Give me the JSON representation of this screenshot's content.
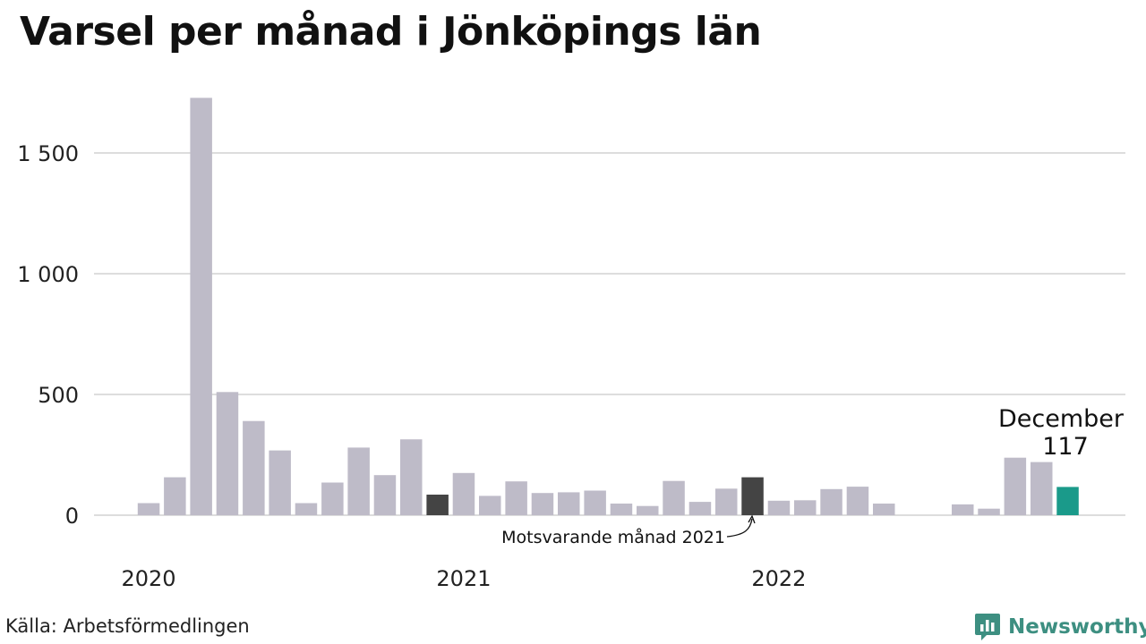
{
  "title": "Varsel per månad i Jönköpings län",
  "source": "Källa: Arbetsförmedlingen",
  "brand": "Newsworthy",
  "colors": {
    "bar": "#bebbc8",
    "comparison": "#444444",
    "current": "#1a9a8a",
    "grid": "#dddddd",
    "brand": "#3d8f81"
  },
  "chart_data": {
    "type": "bar",
    "title": "Varsel per månad i Jönköpings län",
    "xlabel": "",
    "ylabel": "",
    "ylim": [
      0,
      1800
    ],
    "yticks": [
      {
        "value": 0,
        "label": "0"
      },
      {
        "value": 500,
        "label": "500"
      },
      {
        "value": 1000,
        "label": "1 000"
      },
      {
        "value": 1500,
        "label": "1 500"
      }
    ],
    "year_labels": [
      {
        "label": "2020",
        "index": 0
      },
      {
        "label": "2021",
        "index": 12
      },
      {
        "label": "2022",
        "index": 24
      }
    ],
    "grid": true,
    "categories": [
      "2020-01",
      "2020-02",
      "2020-03",
      "2020-04",
      "2020-05",
      "2020-06",
      "2020-07",
      "2020-08",
      "2020-09",
      "2020-10",
      "2020-11",
      "2020-12",
      "2021-01",
      "2021-02",
      "2021-03",
      "2021-04",
      "2021-05",
      "2021-06",
      "2021-07",
      "2021-08",
      "2021-09",
      "2021-10",
      "2021-11",
      "2021-12",
      "2022-01",
      "2022-02",
      "2022-03",
      "2022-04",
      "2022-05",
      "2022-06",
      "2022-07",
      "2022-08",
      "2022-09",
      "2022-10",
      "2022-11",
      "2022-12"
    ],
    "values": [
      50,
      157,
      1728,
      510,
      390,
      268,
      50,
      135,
      280,
      166,
      314,
      85,
      175,
      80,
      140,
      92,
      95,
      102,
      48,
      38,
      142,
      55,
      110,
      157,
      60,
      62,
      108,
      118,
      48,
      0,
      0,
      45,
      27,
      238,
      220,
      117
    ],
    "highlights": [
      {
        "index": 11,
        "role": "comparison"
      },
      {
        "index": 23,
        "role": "comparison"
      },
      {
        "index": 35,
        "role": "current"
      }
    ],
    "annotations": {
      "current_month": "December",
      "current_value": "117",
      "comparison_label": "Motsvarande månad 2021"
    }
  }
}
